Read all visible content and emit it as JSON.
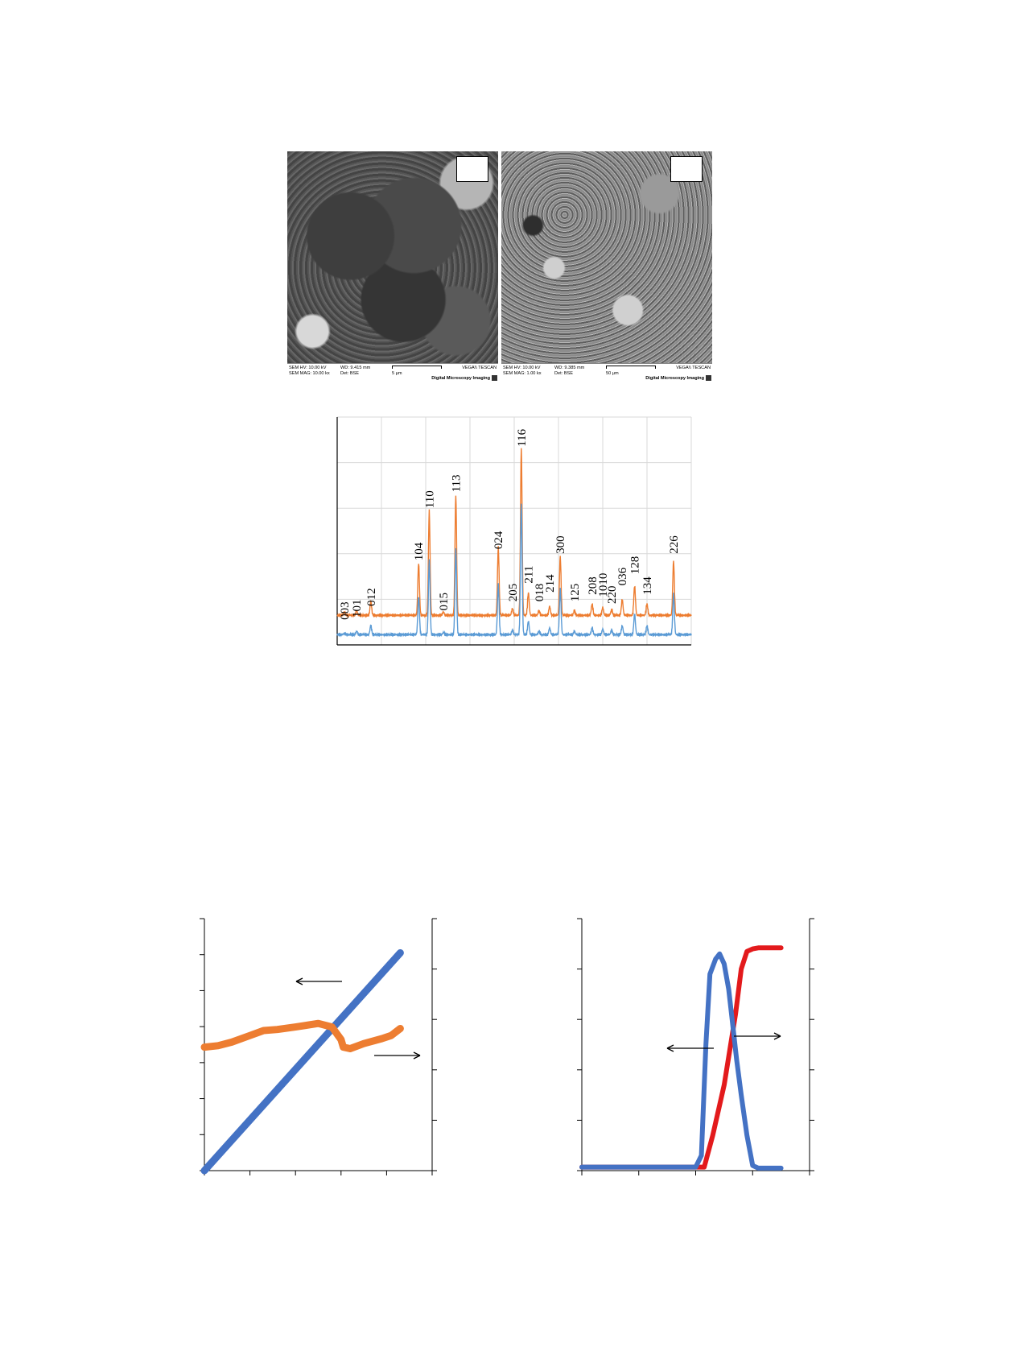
{
  "sem_panels": [
    {
      "hv": "SEM HV: 10.00 kV",
      "mag": "SEM MAG: 10.00 kx",
      "wd": "WD: 9.415 mm",
      "det": "Det: BSE",
      "scale": "5 µm",
      "brand": "VEGA\\\\ TESCAN",
      "imaging": "Digital Microscopy Imaging"
    },
    {
      "hv": "SEM HV: 10.00 kV",
      "mag": "SEM MAG: 1.00 kx",
      "wd": "WD: 9.385 mm",
      "det": "Det: BSE",
      "scale": "50 µm",
      "brand": "VEGA\\\\ TESCAN",
      "imaging": "Digital Microscopy Imaging"
    }
  ],
  "colors": {
    "orange": "#ED7D31",
    "blue": "#5B9BD5",
    "red": "#E31A1C",
    "dark_blue": "#4472C4"
  },
  "chart_data": [
    {
      "type": "line",
      "title": "",
      "xlabel": "",
      "ylabel": "",
      "grid": true,
      "x_range": [
        0,
        100
      ],
      "y_range": [
        0,
        100
      ],
      "peak_labels": [
        {
          "label": "003",
          "x": 2,
          "y": 11
        },
        {
          "label": "101",
          "x": 5.5,
          "y": 12
        },
        {
          "label": "012",
          "x": 9.5,
          "y": 17
        },
        {
          "label": "104",
          "x": 23,
          "y": 37
        },
        {
          "label": "110",
          "x": 26,
          "y": 60
        },
        {
          "label": "015",
          "x": 30,
          "y": 15
        },
        {
          "label": "113",
          "x": 33.5,
          "y": 67
        },
        {
          "label": "024",
          "x": 45.5,
          "y": 42
        },
        {
          "label": "205",
          "x": 49.5,
          "y": 19
        },
        {
          "label": "116",
          "x": 52,
          "y": 87
        },
        {
          "label": "211",
          "x": 54,
          "y": 27
        },
        {
          "label": "018",
          "x": 57,
          "y": 19
        },
        {
          "label": "214",
          "x": 60,
          "y": 23
        },
        {
          "label": "300",
          "x": 63,
          "y": 40
        },
        {
          "label": "125",
          "x": 67,
          "y": 19
        },
        {
          "label": "208",
          "x": 72,
          "y": 22
        },
        {
          "label": "1010",
          "x": 75,
          "y": 21
        },
        {
          "label": "220",
          "x": 77.5,
          "y": 18
        },
        {
          "label": "036",
          "x": 80.5,
          "y": 26
        },
        {
          "label": "128",
          "x": 84,
          "y": 31
        },
        {
          "label": "134",
          "x": 87.5,
          "y": 22
        },
        {
          "label": "226",
          "x": 95,
          "y": 40
        }
      ],
      "series": [
        {
          "color": "#ED7D31",
          "baseline": 13,
          "peaks": [
            [
              2,
              1.5
            ],
            [
              5.5,
              2
            ],
            [
              9.5,
              6
            ],
            [
              23,
              23
            ],
            [
              26,
              46
            ],
            [
              30,
              1.5
            ],
            [
              33.5,
              53
            ],
            [
              45.5,
              30
            ],
            [
              49.5,
              3
            ],
            [
              52,
              74
            ],
            [
              54,
              10
            ],
            [
              57,
              2
            ],
            [
              60,
              4
            ],
            [
              63,
              26
            ],
            [
              67,
              2
            ],
            [
              72,
              5
            ],
            [
              75,
              3.5
            ],
            [
              77.5,
              2.5
            ],
            [
              80.5,
              7
            ],
            [
              84,
              13
            ],
            [
              87.5,
              5
            ],
            [
              95,
              24
            ]
          ]
        },
        {
          "color": "#5B9BD5",
          "baseline": 4.5,
          "peaks": [
            [
              2,
              0.5
            ],
            [
              5.5,
              1.5
            ],
            [
              9.5,
              4
            ],
            [
              23,
              17
            ],
            [
              26,
              33
            ],
            [
              30,
              1
            ],
            [
              33.5,
              38
            ],
            [
              45.5,
              22
            ],
            [
              49.5,
              2
            ],
            [
              52,
              58
            ],
            [
              54,
              6
            ],
            [
              57,
              1.5
            ],
            [
              60,
              3
            ],
            [
              63,
              20
            ],
            [
              67,
              1.5
            ],
            [
              72,
              3
            ],
            [
              75,
              2.5
            ],
            [
              77.5,
              2
            ],
            [
              80.5,
              4
            ],
            [
              84,
              9
            ],
            [
              87.5,
              4
            ],
            [
              95,
              18
            ]
          ]
        }
      ]
    },
    {
      "type": "line",
      "title": "",
      "xlabel": "",
      "ylabel": "",
      "y_left_range": [
        0,
        7
      ],
      "y_right_range": [
        0,
        5
      ],
      "x_range": [
        0,
        5
      ],
      "series": [
        {
          "color": "#4472C4",
          "axis": "left",
          "x": [
            0,
            4.3
          ],
          "y": [
            0,
            6.05
          ]
        },
        {
          "color": "#ED7D31",
          "axis": "right",
          "x": [
            0,
            0.3,
            0.6,
            1,
            1.3,
            1.6,
            2,
            2.5,
            2.8,
            3,
            3.05,
            3.2,
            3.5,
            3.9,
            4.1,
            4.3
          ],
          "y": [
            2.45,
            2.48,
            2.55,
            2.68,
            2.78,
            2.8,
            2.85,
            2.92,
            2.85,
            2.6,
            2.45,
            2.42,
            2.52,
            2.62,
            2.68,
            2.82
          ]
        }
      ]
    },
    {
      "type": "line",
      "title": "",
      "xlabel": "",
      "ylabel": "",
      "y_left_range": [
        0,
        5
      ],
      "y_right_range": [
        0,
        5
      ],
      "x_range": [
        0,
        4
      ],
      "series": [
        {
          "color": "#E31A1C",
          "axis": "right",
          "x": [
            0,
            2.0,
            2.15,
            2.3,
            2.5,
            2.7,
            2.8,
            2.9,
            3.0,
            3.1,
            3.5
          ],
          "y": [
            0.07,
            0.07,
            0.07,
            0.7,
            1.7,
            3.1,
            4.0,
            4.35,
            4.4,
            4.42,
            4.42
          ]
        },
        {
          "color": "#4472C4",
          "axis": "left",
          "x": [
            0,
            2.0,
            2.1,
            2.18,
            2.25,
            2.35,
            2.42,
            2.5,
            2.58,
            2.65,
            2.72,
            2.8,
            2.9,
            3.0,
            3.1,
            3.5
          ],
          "y": [
            0.07,
            0.07,
            0.3,
            2.5,
            3.9,
            4.2,
            4.3,
            4.1,
            3.6,
            2.9,
            2.2,
            1.5,
            0.7,
            0.1,
            0.05,
            0.05
          ]
        }
      ]
    }
  ]
}
